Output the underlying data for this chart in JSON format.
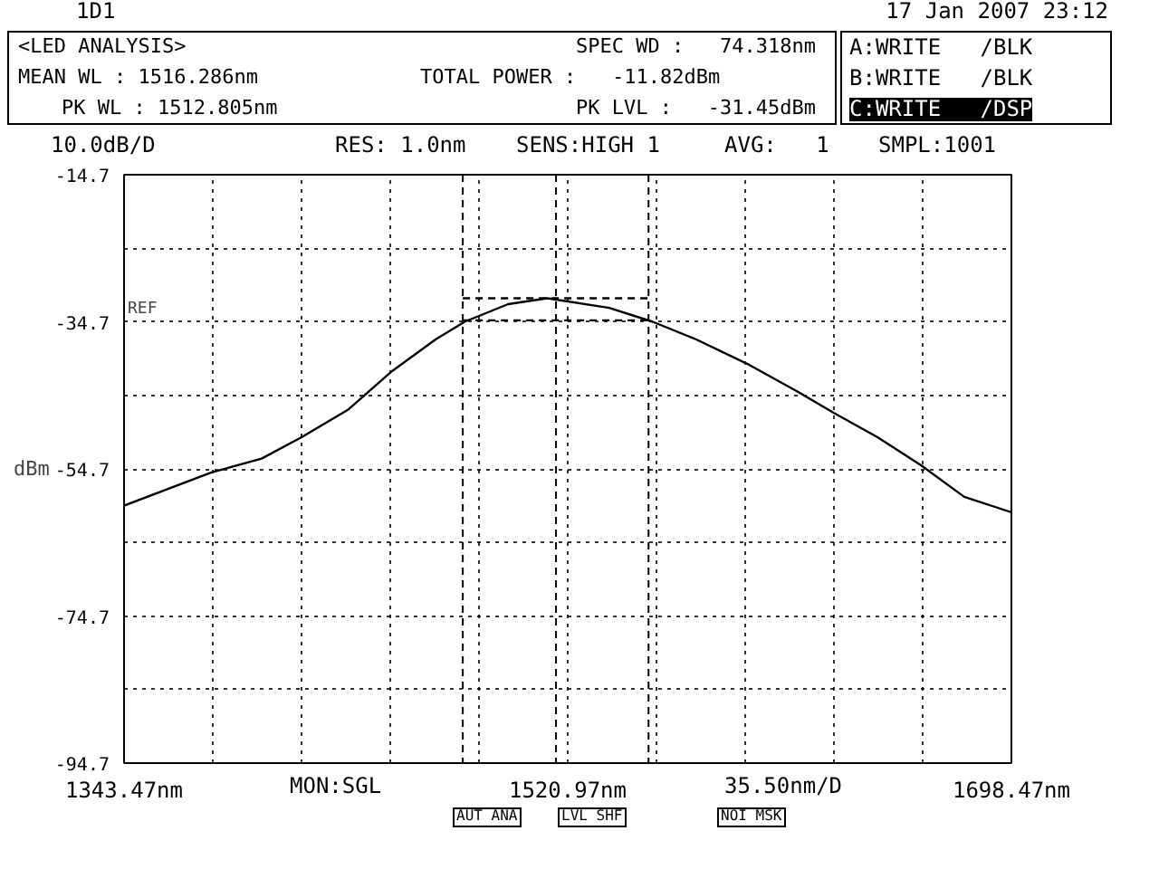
{
  "chart_data": {
    "type": "line",
    "ylabel": "dBm",
    "xlabel": "35.50nm/D",
    "annotations": [
      "1D1",
      "17 Jan 2007 23:12",
      "<LED ANALYSIS>",
      "SPEC WD :   74.318nm",
      "MEAN WL : 1516.286nm",
      "TOTAL POWER :   -11.82dBm",
      "PK WL : 1512.805nm",
      "PK LVL :   -31.45dBm",
      "A:WRITE   /BLK",
      "B:WRITE   /BLK",
      "C:WRITE   /DSP",
      "10.0dB/D",
      "RES: 1.0nm",
      "SENS:HIGH 1",
      "AVG:   1",
      "SMPL:1001",
      "REF",
      "MON:SGL",
      "AUT ANA",
      "LVL SHF",
      "NOI MSK"
    ],
    "xlim": [
      1343.47,
      1698.47
    ],
    "xticks": [
      {
        "value": 1343.47,
        "label": "1343.47nm"
      },
      {
        "value": 1378.97,
        "label": null
      },
      {
        "value": 1414.47,
        "label": null
      },
      {
        "value": 1449.97,
        "label": null
      },
      {
        "value": 1485.47,
        "label": null
      },
      {
        "value": 1520.97,
        "label": "1520.97nm"
      },
      {
        "value": 1556.47,
        "label": null
      },
      {
        "value": 1591.97,
        "label": null
      },
      {
        "value": 1627.47,
        "label": null
      },
      {
        "value": 1662.97,
        "label": null
      },
      {
        "value": 1698.47,
        "label": "1698.47nm"
      }
    ],
    "ylim": [
      -94.7,
      -14.7
    ],
    "yticks": [
      -14.7,
      {
        "value": -24.7,
        "label": null
      },
      -34.7,
      {
        "value": -44.7,
        "label": null
      },
      -54.7,
      {
        "value": -64.7,
        "label": null
      },
      -74.7,
      {
        "value": -84.7,
        "label": null
      },
      -94.7
    ],
    "grid": true,
    "marker": "none",
    "line_style": "solid",
    "series": [
      {
        "color": "#000000",
        "x": [
          1343.47,
          1378.2,
          1398.5,
          1414.5,
          1433.3,
          1450.7,
          1468.1,
          1479.7,
          1497.1,
          1512.8,
          1537.6,
          1555.0,
          1572.4,
          1592.7,
          1613.0,
          1627.5,
          1644.9,
          1662.3,
          1679.6,
          1698.47
        ],
        "values": [
          -59.7,
          -55.2,
          -53.3,
          -50.4,
          -46.6,
          -41.4,
          -37.1,
          -34.7,
          -32.3,
          -31.5,
          -32.8,
          -34.7,
          -37.1,
          -40.4,
          -44.2,
          -47.1,
          -50.4,
          -54.2,
          -58.5,
          -60.6
        ]
      },
      {
        "color": "#000000",
        "line_style": "dashed",
        "x": [
          1479.0,
          1553.3
        ],
        "values": [
          -31.5,
          -31.5
        ]
      },
      {
        "color": "#000000",
        "line_style": "dashed",
        "x": [
          1479.0,
          1553.3
        ],
        "values": [
          -34.5,
          -34.5
        ]
      }
    ],
    "ref_lines": [
      {
        "axis": "x",
        "value": 1479.0,
        "line_style": "dashed",
        "color": "#000000"
      },
      {
        "axis": "x",
        "value": 1516.286,
        "line_style": "dashed",
        "color": "#000000"
      },
      {
        "axis": "x",
        "value": 1553.3,
        "line_style": "dashed",
        "color": "#000000"
      }
    ]
  }
}
